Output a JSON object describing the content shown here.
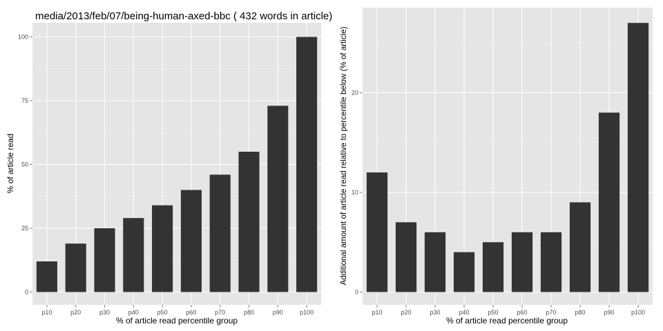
{
  "chart_data": [
    {
      "type": "bar",
      "title": "media/2013/feb/07/being-human-axed-bbc ( 432 words in article)",
      "xlabel": "% of article read percentile group",
      "ylabel": "% of article read",
      "categories": [
        "p10",
        "p20",
        "p30",
        "p40",
        "p50",
        "p60",
        "p70",
        "p80",
        "p90",
        "p100"
      ],
      "values": [
        12,
        19,
        25,
        29,
        34,
        40,
        46,
        55,
        73,
        100
      ],
      "ylim": [
        0,
        105
      ],
      "yticks": [
        0,
        25,
        50,
        75,
        100
      ],
      "bar_color": "#333333",
      "grid": true
    },
    {
      "type": "bar",
      "title": "",
      "xlabel": "% of article read percentile group",
      "ylabel": "Additional amount of article read relative to percentile below (% of article)",
      "categories": [
        "p10",
        "p20",
        "p30",
        "p40",
        "p50",
        "p60",
        "p70",
        "p80",
        "p90",
        "p100"
      ],
      "values": [
        12,
        7,
        6,
        4,
        5,
        6,
        6,
        9,
        18,
        27
      ],
      "ylim": [
        0,
        28.4
      ],
      "yticks": [
        0,
        10,
        20
      ],
      "bar_color": "#333333",
      "grid": true
    }
  ]
}
